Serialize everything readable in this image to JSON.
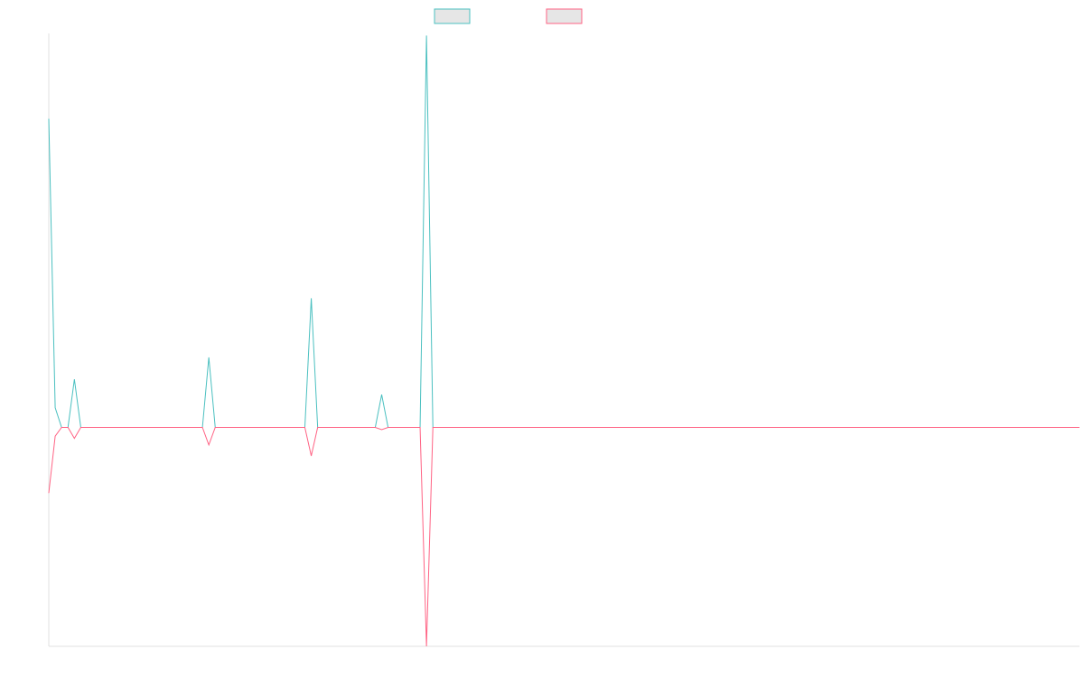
{
  "chart_data": {
    "type": "line",
    "title": "",
    "xlabel": "",
    "ylabel": "",
    "grid": false,
    "legend": "top-center",
    "x_count": 162,
    "ylim": [
      -100,
      180
    ],
    "series": [
      {
        "name": "",
        "color": "#4bc0c0",
        "points": [
          [
            0,
            141
          ],
          [
            1,
            9
          ],
          [
            4,
            22
          ],
          [
            25,
            32
          ],
          [
            41,
            59
          ],
          [
            52,
            15
          ],
          [
            59,
            179
          ]
        ]
      },
      {
        "name": "",
        "color": "#ff6384",
        "points": [
          [
            0,
            -30
          ],
          [
            1,
            -4
          ],
          [
            4,
            -5
          ],
          [
            25,
            -8
          ],
          [
            41,
            -13
          ],
          [
            52,
            -1
          ],
          [
            59,
            -100
          ]
        ]
      }
    ]
  }
}
